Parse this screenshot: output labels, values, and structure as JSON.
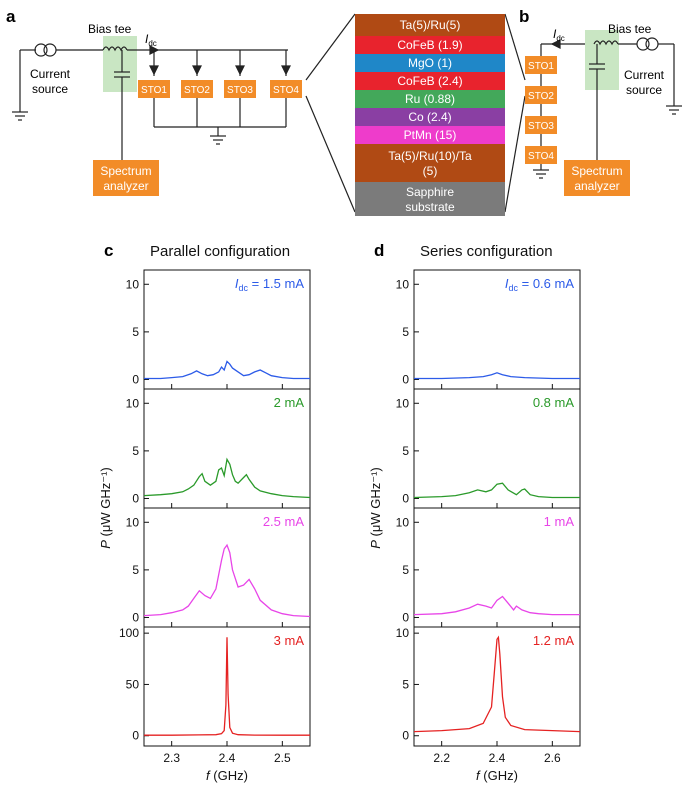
{
  "panels": {
    "a_label": "a",
    "b_label": "b",
    "c_label": "c",
    "d_label": "d",
    "c_title": "Parallel configuration",
    "d_title": "Series configuration"
  },
  "circuit_a": {
    "bias_tee": "Bias tee",
    "idc": "I",
    "idc_sub": "dc",
    "current_source_1": "Current",
    "current_source_2": "source",
    "spectrum_1": "Spectrum",
    "spectrum_2": "analyzer",
    "sto_labels": [
      "STO1",
      "STO2",
      "STO3",
      "STO4"
    ]
  },
  "circuit_b": {
    "bias_tee": "Bias tee",
    "idc": "I",
    "idc_sub": "dc",
    "current_source_1": "Current",
    "current_source_2": "source",
    "spectrum_1": "Spectrum",
    "spectrum_2": "analyzer",
    "sto_labels": [
      "STO1",
      "STO2",
      "STO3",
      "STO4"
    ]
  },
  "stack": {
    "layers": [
      {
        "label": "Ta(5)/Ru(5)",
        "color": "#b04a14"
      },
      {
        "label": "CoFeB (1.9)",
        "color": "#e8232d"
      },
      {
        "label": "MgO (1)",
        "color": "#1f87c8"
      },
      {
        "label": "CoFeB (2.4)",
        "color": "#e8232d"
      },
      {
        "label": "Ru (0.88)",
        "color": "#43a85a"
      },
      {
        "label": "Co (2.4)",
        "color": "#8a3fa3"
      },
      {
        "label": "PtMn (15)",
        "color": "#ee3ccb"
      },
      {
        "label": "Ta(5)/Ru(10)/Ta (5)",
        "color": "#b04a14"
      },
      {
        "label": "Sapphire substrate",
        "color": "#7b7b7b"
      }
    ]
  },
  "colors": {
    "sto_box": "#f28c28",
    "spectrum_box": "#f28c28",
    "bias_tee_bg": "#c9e6c3",
    "blue": "#2c5be8",
    "green": "#2a9a2a",
    "magenta": "#e845e8",
    "red": "#e52222"
  },
  "chart_data": [
    {
      "type": "line",
      "title": "Parallel configuration",
      "xlabel": "f (GHz)",
      "ylabel": "P (μW GHz⁻¹)",
      "xlim": [
        2.25,
        2.55
      ],
      "xticks": [
        "2.3",
        "2.4",
        "2.5"
      ],
      "series": [
        {
          "name": "I_dc = 1.5 mA",
          "label_prefix": "I",
          "label_sub": "dc",
          "label_text": " = 1.5 mA",
          "color": "#2c5be8",
          "ylim": [
            -1,
            11.5
          ],
          "yticks": [
            "0",
            "5",
            "10"
          ],
          "x": [
            2.25,
            2.28,
            2.3,
            2.32,
            2.335,
            2.345,
            2.355,
            2.365,
            2.375,
            2.385,
            2.39,
            2.395,
            2.4,
            2.405,
            2.41,
            2.42,
            2.43,
            2.44,
            2.45,
            2.46,
            2.47,
            2.48,
            2.5,
            2.52,
            2.55
          ],
          "y": [
            0.1,
            0.1,
            0.2,
            0.3,
            0.6,
            0.9,
            0.6,
            0.4,
            0.5,
            0.8,
            1.3,
            1.0,
            1.9,
            1.6,
            1.2,
            0.8,
            0.4,
            0.5,
            0.8,
            1.0,
            0.7,
            0.4,
            0.2,
            0.1,
            0.1
          ]
        },
        {
          "name": "2 mA",
          "label_text": "2 mA",
          "color": "#2a9a2a",
          "ylim": [
            -1,
            11.5
          ],
          "yticks": [
            "0",
            "5",
            "10"
          ],
          "x": [
            2.25,
            2.28,
            2.3,
            2.32,
            2.33,
            2.34,
            2.35,
            2.355,
            2.36,
            2.37,
            2.38,
            2.385,
            2.39,
            2.395,
            2.4,
            2.405,
            2.41,
            2.415,
            2.42,
            2.43,
            2.435,
            2.44,
            2.45,
            2.46,
            2.48,
            2.5,
            2.52,
            2.55
          ],
          "y": [
            0.3,
            0.4,
            0.5,
            0.7,
            1.0,
            1.4,
            2.3,
            2.6,
            1.8,
            1.4,
            1.8,
            3.0,
            3.2,
            2.4,
            4.1,
            3.6,
            2.5,
            1.8,
            1.6,
            2.2,
            2.5,
            2.0,
            1.2,
            0.8,
            0.5,
            0.3,
            0.2,
            0.1
          ]
        },
        {
          "name": "2.5 mA",
          "label_text": "2.5 mA",
          "color": "#e845e8",
          "ylim": [
            -1,
            11.5
          ],
          "yticks": [
            "0",
            "5",
            "10"
          ],
          "x": [
            2.25,
            2.28,
            2.3,
            2.32,
            2.33,
            2.34,
            2.35,
            2.36,
            2.37,
            2.38,
            2.39,
            2.395,
            2.4,
            2.405,
            2.41,
            2.42,
            2.43,
            2.44,
            2.45,
            2.46,
            2.48,
            2.5,
            2.52,
            2.55
          ],
          "y": [
            0.2,
            0.3,
            0.5,
            0.8,
            1.2,
            2.0,
            2.8,
            2.3,
            2.0,
            3.0,
            6.0,
            7.2,
            7.6,
            6.8,
            5.0,
            3.2,
            3.4,
            4.0,
            3.0,
            1.8,
            0.8,
            0.4,
            0.2,
            0.1
          ]
        },
        {
          "name": "3 mA",
          "label_text": "3 mA",
          "color": "#e52222",
          "ylim": [
            -10,
            106
          ],
          "yticks": [
            "0",
            "50",
            "100"
          ],
          "x": [
            2.25,
            2.3,
            2.35,
            2.38,
            2.39,
            2.395,
            2.398,
            2.4,
            2.402,
            2.405,
            2.41,
            2.42,
            2.45,
            2.5,
            2.55
          ],
          "y": [
            0.5,
            0.5,
            0.8,
            1.0,
            2.0,
            5.0,
            30.0,
            96.0,
            40.0,
            8.0,
            2.5,
            1.0,
            0.6,
            0.5,
            0.5
          ]
        }
      ]
    },
    {
      "type": "line",
      "title": "Series configuration",
      "xlabel": "f (GHz)",
      "ylabel": "P (μW GHz⁻¹)",
      "xlim": [
        2.1,
        2.7
      ],
      "xticks": [
        "2.2",
        "2.4",
        "2.6"
      ],
      "series": [
        {
          "name": "I_dc = 0.6 mA",
          "label_prefix": "I",
          "label_sub": "dc",
          "label_text": " = 0.6 mA",
          "color": "#2c5be8",
          "ylim": [
            -1,
            11.5
          ],
          "yticks": [
            "0",
            "5",
            "10"
          ],
          "x": [
            2.1,
            2.2,
            2.3,
            2.35,
            2.38,
            2.4,
            2.42,
            2.45,
            2.5,
            2.6,
            2.7
          ],
          "y": [
            0.1,
            0.1,
            0.2,
            0.3,
            0.5,
            0.7,
            0.5,
            0.3,
            0.2,
            0.1,
            0.1
          ]
        },
        {
          "name": "0.8 mA",
          "label_text": "0.8 mA",
          "color": "#2a9a2a",
          "ylim": [
            -1,
            11.5
          ],
          "yticks": [
            "0",
            "5",
            "10"
          ],
          "x": [
            2.1,
            2.2,
            2.25,
            2.3,
            2.33,
            2.36,
            2.38,
            2.4,
            2.42,
            2.44,
            2.47,
            2.49,
            2.5,
            2.52,
            2.55,
            2.6,
            2.7
          ],
          "y": [
            0.1,
            0.2,
            0.3,
            0.6,
            0.9,
            0.7,
            0.9,
            1.5,
            1.6,
            0.9,
            0.4,
            0.9,
            1.0,
            0.4,
            0.2,
            0.1,
            0.1
          ]
        },
        {
          "name": "1 mA",
          "label_text": "1 mA",
          "color": "#e845e8",
          "ylim": [
            -1,
            11.5
          ],
          "yticks": [
            "0",
            "5",
            "10"
          ],
          "x": [
            2.1,
            2.2,
            2.25,
            2.3,
            2.33,
            2.36,
            2.38,
            2.4,
            2.42,
            2.44,
            2.46,
            2.47,
            2.49,
            2.52,
            2.55,
            2.6,
            2.7
          ],
          "y": [
            0.3,
            0.4,
            0.6,
            1.0,
            1.4,
            1.2,
            1.0,
            1.8,
            2.2,
            1.5,
            0.8,
            1.2,
            0.8,
            0.5,
            0.4,
            0.3,
            0.3
          ]
        },
        {
          "name": "1.2 mA",
          "label_text": "1.2 mA",
          "color": "#e52222",
          "ylim": [
            -1,
            10.6
          ],
          "yticks": [
            "0",
            "5",
            "10"
          ],
          "x": [
            2.1,
            2.2,
            2.3,
            2.35,
            2.38,
            2.39,
            2.4,
            2.405,
            2.41,
            2.42,
            2.43,
            2.45,
            2.5,
            2.6,
            2.7
          ],
          "y": [
            0.4,
            0.5,
            0.7,
            1.2,
            2.8,
            6.0,
            9.4,
            9.6,
            8.0,
            3.8,
            1.8,
            1.0,
            0.6,
            0.5,
            0.4
          ]
        }
      ]
    }
  ]
}
